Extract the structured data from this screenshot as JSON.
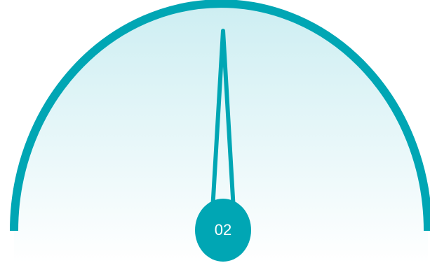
{
  "gauge": {
    "label": "02",
    "accent_color": "#00a6b4",
    "fill_top_color": "#cdeef2",
    "fill_bottom_color": "#ffffff",
    "needle_icon": "needle-icon"
  }
}
